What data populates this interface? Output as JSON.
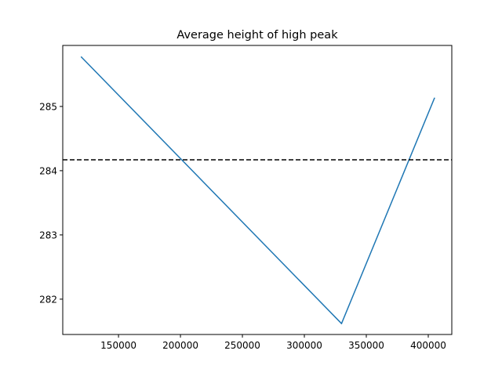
{
  "chart_data": {
    "type": "line",
    "title": "Average height of high peak",
    "xlabel": "",
    "ylabel": "",
    "xlim": [
      105000,
      419000
    ],
    "ylim": [
      281.45,
      285.95
    ],
    "x_ticks": [
      150000,
      200000,
      250000,
      300000,
      350000,
      400000
    ],
    "x_tick_labels": [
      "150000",
      "200000",
      "250000",
      "300000",
      "350000",
      "400000"
    ],
    "y_ticks": [
      282,
      283,
      284,
      285
    ],
    "y_tick_labels": [
      "282",
      "283",
      "284",
      "285"
    ],
    "grid": false,
    "legend": "none",
    "series": [
      {
        "color": "#1f77b4",
        "points": [
          {
            "x": 120000,
            "y": 285.77
          },
          {
            "x": 330000,
            "y": 281.62
          },
          {
            "x": 405000,
            "y": 285.13
          }
        ]
      }
    ],
    "reference_line": {
      "orientation": "horizontal",
      "y": 284.17,
      "style": "dashed",
      "color": "#000000"
    }
  }
}
